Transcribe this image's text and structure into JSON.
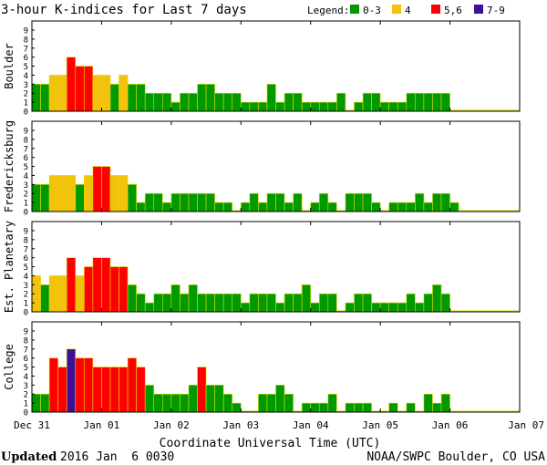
{
  "title": "3-hour K-indices for Last 7 days",
  "legend": {
    "label": "Legend:",
    "entries": [
      {
        "label": "0-3",
        "color": "#009900"
      },
      {
        "label": "4",
        "color": "#f2c20c"
      },
      {
        "label": "5,6",
        "color": "#ff0000"
      },
      {
        "label": "7-9",
        "color": "#3f0f99"
      }
    ]
  },
  "colors": {
    "bar_outline": "#dddd00"
  },
  "x_axis": {
    "label": "Coordinate Universal Time (UTC)",
    "ticks": [
      "Dec 31",
      "Jan 01",
      "Jan 02",
      "Jan 03",
      "Jan 04",
      "Jan 05",
      "Jan 06",
      "Jan 07"
    ]
  },
  "footer": {
    "updated_label": "Updated",
    "updated_value": "2016 Jan  6 0030",
    "source": "NOAA/SWPC Boulder, CO USA"
  },
  "chart_data": {
    "type": "bar",
    "x_range": [
      "Dec 31",
      "Jan 07"
    ],
    "bins_per_day": 8,
    "ylim": [
      0,
      9
    ],
    "y_ticks": [
      "0",
      "1",
      "2",
      "3",
      "4",
      "5",
      "6",
      "7",
      "8",
      "9"
    ],
    "panels": [
      {
        "name": "Boulder",
        "values": [
          3,
          3,
          4,
          4,
          6,
          5,
          5,
          4,
          4,
          3,
          4,
          3,
          3,
          2,
          2,
          2,
          1,
          2,
          2,
          3,
          3,
          2,
          2,
          2,
          1,
          1,
          1,
          3,
          1,
          2,
          2,
          1,
          1,
          1,
          1,
          2,
          0,
          1,
          2,
          2,
          1,
          1,
          1,
          2,
          2,
          2,
          2,
          2
        ]
      },
      {
        "name": "Fredericksburg",
        "values": [
          3,
          3,
          4,
          4,
          4,
          3,
          4,
          5,
          5,
          4,
          4,
          3,
          1,
          2,
          2,
          1,
          2,
          2,
          2,
          2,
          2,
          1,
          1,
          0,
          1,
          2,
          1,
          2,
          2,
          1,
          2,
          0,
          1,
          2,
          1,
          0,
          2,
          2,
          2,
          1,
          0,
          1,
          1,
          1,
          2,
          1,
          2,
          2,
          1
        ]
      },
      {
        "name": "Est. Planetary",
        "values": [
          4,
          3,
          4,
          4,
          6,
          4,
          5,
          6,
          6,
          5,
          5,
          3,
          2,
          1,
          2,
          2,
          3,
          2,
          3,
          2,
          2,
          2,
          2,
          2,
          1,
          2,
          2,
          2,
          1,
          2,
          2,
          3,
          1,
          2,
          2,
          0,
          1,
          2,
          2,
          1,
          1,
          1,
          1,
          2,
          1,
          2,
          3,
          2
        ]
      },
      {
        "name": "College",
        "values": [
          2,
          2,
          6,
          5,
          7,
          6,
          6,
          5,
          5,
          5,
          5,
          6,
          5,
          3,
          2,
          2,
          2,
          2,
          3,
          5,
          3,
          3,
          2,
          1,
          0,
          0,
          2,
          2,
          3,
          2,
          0,
          1,
          1,
          1,
          2,
          0,
          1,
          1,
          1,
          0,
          0,
          1,
          0,
          1,
          0,
          2,
          1,
          2
        ]
      }
    ]
  }
}
